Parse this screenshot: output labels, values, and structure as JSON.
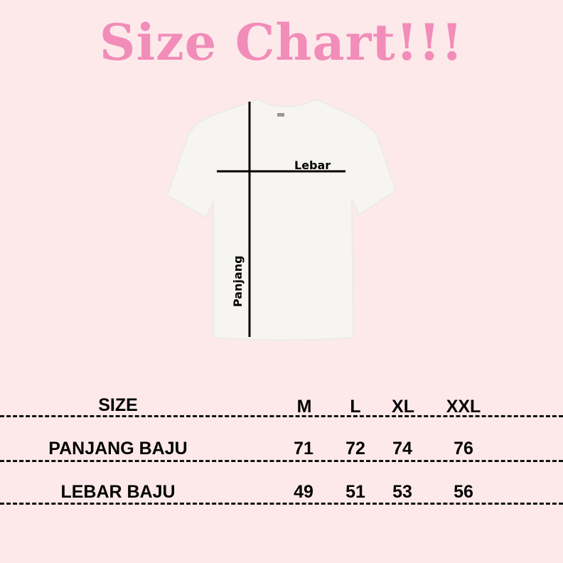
{
  "title": "Size Chart!!!",
  "diagram": {
    "width_label": "Lebar",
    "length_label": "Panjang",
    "shirt_color": "#f7f5f1"
  },
  "colors": {
    "background": "#fde9ea",
    "title": "#f28cb8"
  },
  "table": {
    "header": {
      "label": "SIZE",
      "sizes": [
        "M",
        "L",
        "XL",
        "XXL"
      ]
    },
    "rows": [
      {
        "label": "PANJANG BAJU",
        "values": [
          "71",
          "72",
          "74",
          "76"
        ]
      },
      {
        "label": "LEBAR BAJU",
        "values": [
          "49",
          "51",
          "53",
          "56"
        ]
      }
    ]
  }
}
